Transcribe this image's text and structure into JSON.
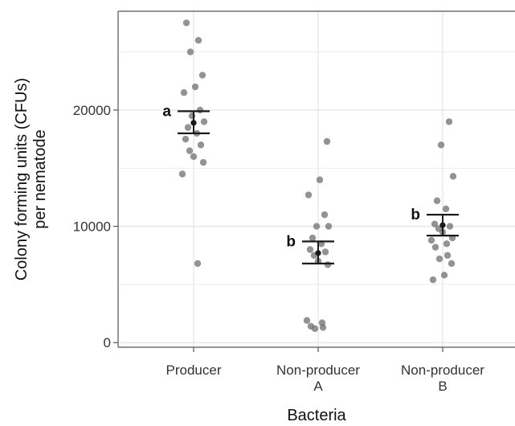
{
  "chart_data": {
    "type": "scatter",
    "title": "",
    "xlabel": "Bacteria",
    "ylabel_lines": [
      "Colony forming units (CFUs)",
      "per nematode"
    ],
    "categories": [
      {
        "lines": [
          "Producer"
        ]
      },
      {
        "lines": [
          "Non-producer",
          "A"
        ]
      },
      {
        "lines": [
          "Non-producer",
          "B"
        ]
      }
    ],
    "yticks": [
      {
        "value": 0,
        "label": "0"
      },
      {
        "value": 10000,
        "label": "10000"
      },
      {
        "value": 20000,
        "label": "20000"
      }
    ],
    "ylim": [
      -400,
      28500
    ],
    "grid": true,
    "points": [
      [
        27500,
        26000,
        25000,
        23000,
        22000,
        21500,
        20000,
        19500,
        19000,
        18500,
        18000,
        17500,
        17000,
        16500,
        16000,
        15500,
        14500,
        6800
      ],
      [
        17300,
        14000,
        12700,
        11000,
        10000,
        10000,
        9000,
        8500,
        8000,
        7800,
        7500,
        7000,
        6700,
        1900,
        1700,
        1400,
        1300,
        1200
      ],
      [
        19000,
        17000,
        14300,
        12200,
        11500,
        10200,
        10000,
        9800,
        9500,
        9000,
        8800,
        8500,
        8200,
        7500,
        7200,
        6800,
        5800,
        5400
      ]
    ],
    "summary": [
      {
        "mean": 18900,
        "lower": 18000,
        "upper": 19900,
        "letter": "a"
      },
      {
        "mean": 7700,
        "lower": 6800,
        "upper": 8700,
        "letter": "b"
      },
      {
        "mean": 10100,
        "lower": 9200,
        "upper": 11000,
        "letter": "b"
      }
    ],
    "colors": {
      "point": "#6f6f6f",
      "mean": "#1a1a1a",
      "grid": "#e6e6e6",
      "axis": "#555555"
    }
  }
}
